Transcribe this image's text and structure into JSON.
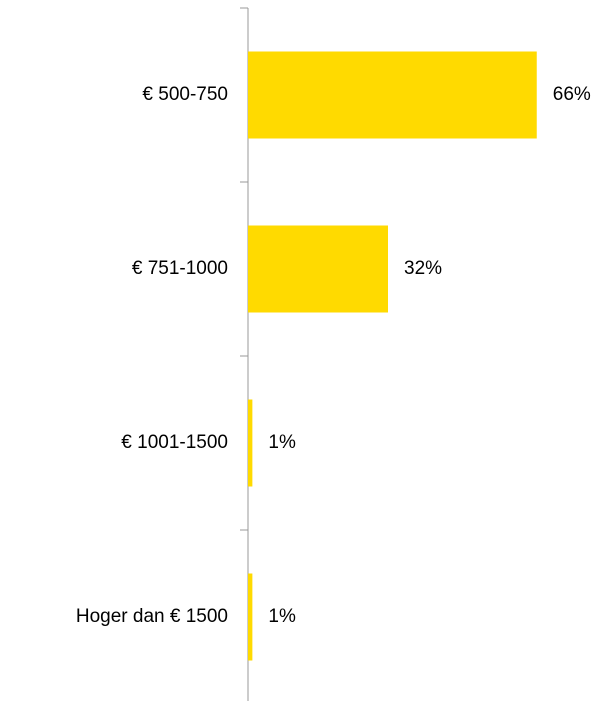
{
  "chart_data": {
    "type": "barh",
    "categories": [
      "€ 500-750",
      "€ 751-1000",
      "€ 1001-1500",
      "Hoger dan € 1500"
    ],
    "values": [
      66,
      32,
      1,
      1
    ],
    "value_labels": [
      "66%",
      "32%",
      "1%",
      "1%"
    ],
    "color": "#ffda00",
    "xlim": [
      0,
      80
    ]
  }
}
